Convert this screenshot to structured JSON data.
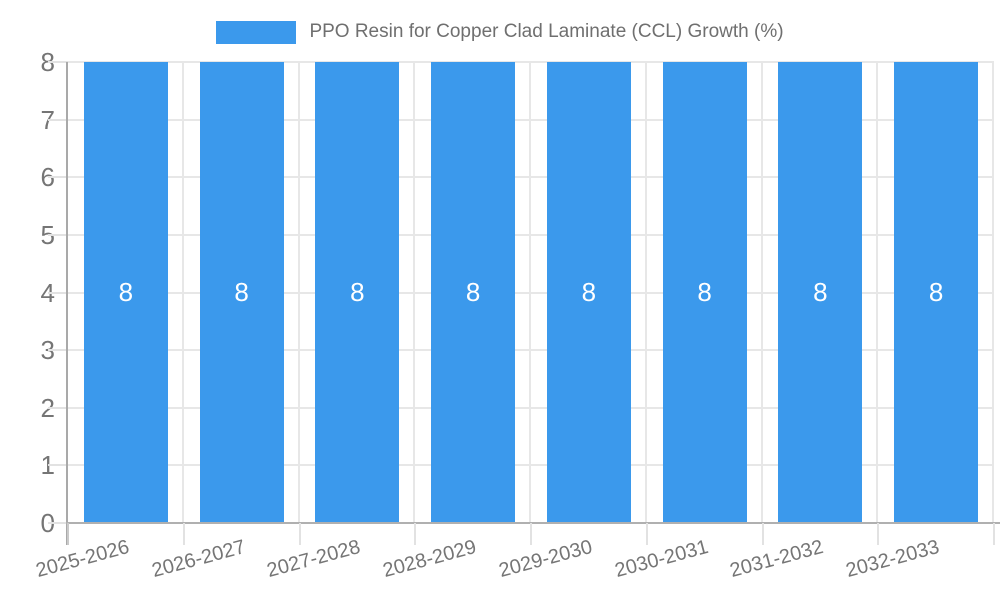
{
  "legend": {
    "label": "PPO Resin for Copper Clad Laminate (CCL) Growth (%)"
  },
  "colors": {
    "bar": "#3b99ec",
    "grid": "#e7e7e7",
    "axis": "#a9a9a9",
    "tick_text": "#757575",
    "bar_label_text": "#ffffff",
    "background": "#ffffff"
  },
  "chart_data": {
    "type": "bar",
    "title": "PPO Resin for Copper Clad Laminate (CCL) Growth (%)",
    "categories": [
      "2025-2026",
      "2026-2027",
      "2027-2028",
      "2028-2029",
      "2029-2030",
      "2030-2031",
      "2031-2032",
      "2032-2033"
    ],
    "series": [
      {
        "name": "PPO Resin for Copper Clad Laminate (CCL) Growth (%)",
        "values": [
          8,
          8,
          8,
          8,
          8,
          8,
          8,
          8
        ]
      }
    ],
    "bar_labels": [
      "8",
      "8",
      "8",
      "8",
      "8",
      "8",
      "8",
      "8"
    ],
    "xlabel": "",
    "ylabel": "",
    "ylim": [
      0,
      8
    ],
    "yticks": [
      0,
      1,
      2,
      3,
      4,
      5,
      6,
      7,
      8
    ],
    "grid": true,
    "legend_position": "top-center"
  }
}
